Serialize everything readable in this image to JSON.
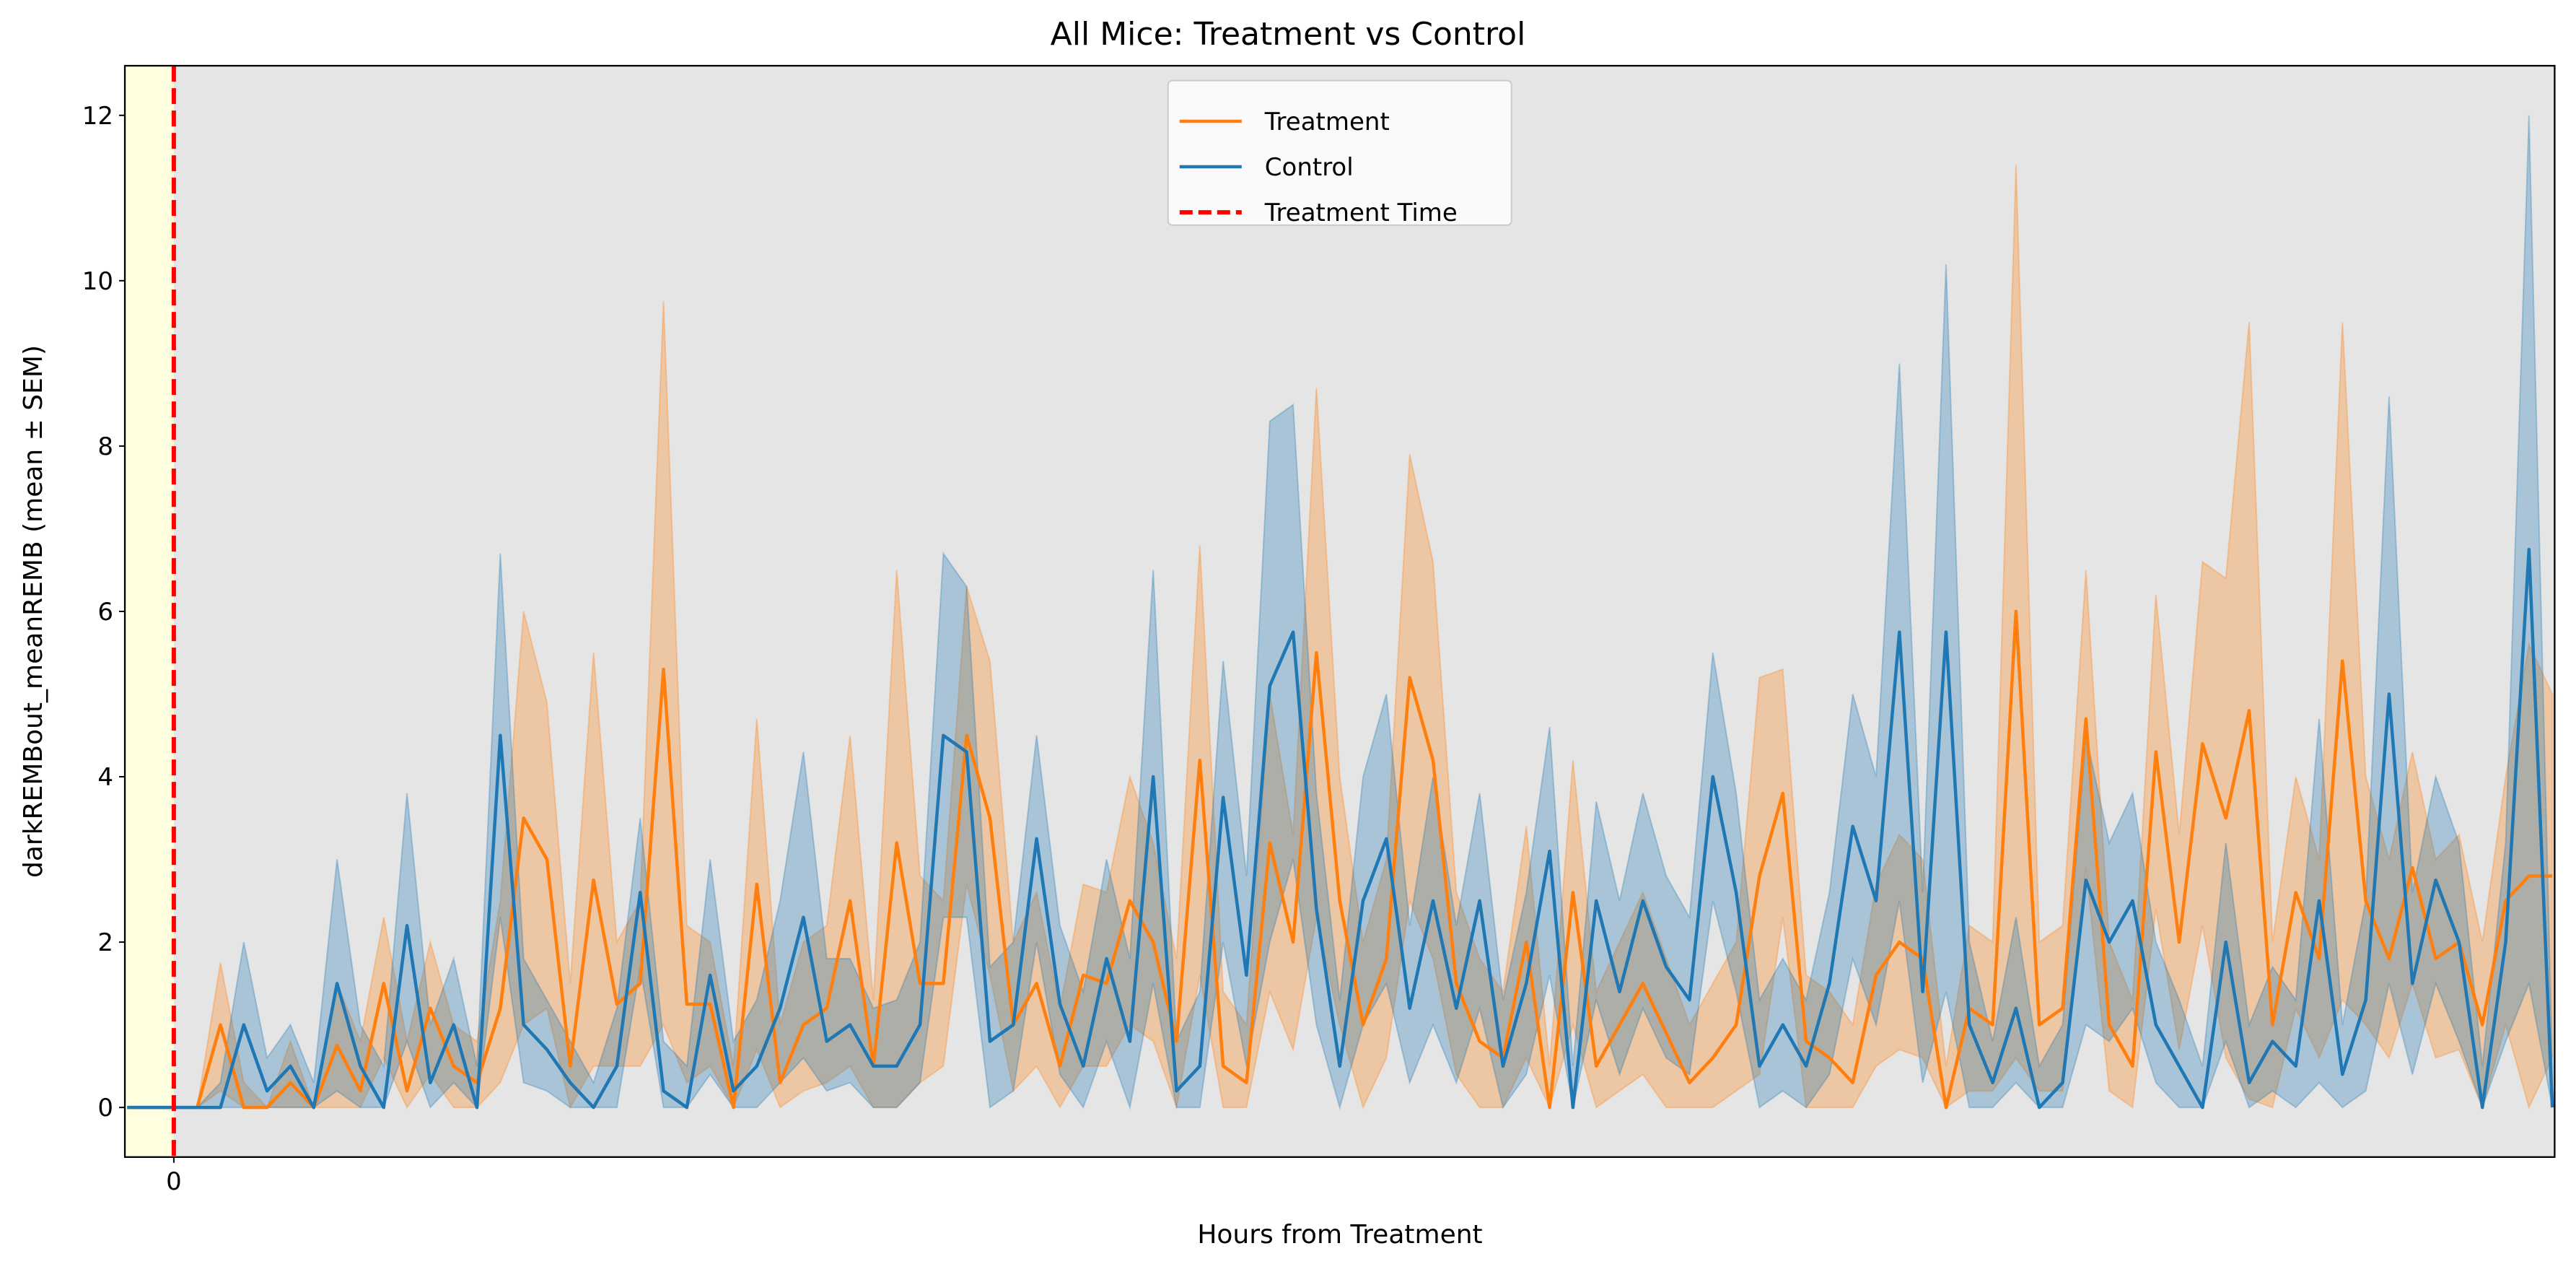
{
  "chart_data": {
    "type": "line",
    "title": "All Mice: Treatment vs Control",
    "xlabel": "Hours from Treatment",
    "ylabel": "darkREMBout_meanREMB (mean ± SEM)",
    "xlim": [
      -4.2,
      204.2
    ],
    "ylim": [
      -0.6,
      12.6
    ],
    "xticks": [
      0
    ],
    "yticks": [
      0,
      2,
      4,
      6,
      8,
      10,
      12
    ],
    "grid": false,
    "legend": "upper center",
    "background": "#e5e5e5",
    "shade": {
      "range": [
        -4.2,
        0
      ],
      "color": "#ffffe0"
    },
    "vline": {
      "name": "Treatment Time",
      "x": 0,
      "color": "#ff0000"
    },
    "x": [
      -4,
      -2,
      0,
      2,
      4,
      6,
      8,
      10,
      12,
      14,
      16,
      18,
      20,
      22,
      24,
      26,
      28,
      30,
      32,
      34,
      36,
      38,
      40,
      42,
      44,
      46,
      48,
      50,
      52,
      54,
      56,
      58,
      60,
      62,
      64,
      66,
      68,
      70,
      72,
      74,
      76,
      78,
      80,
      82,
      84,
      86,
      88,
      90,
      92,
      94,
      96,
      98,
      100,
      102,
      104,
      106,
      108,
      110,
      112,
      114,
      116,
      118,
      120,
      122,
      124,
      126,
      128,
      130,
      132,
      134,
      136,
      138,
      140,
      142,
      144,
      146,
      148,
      150,
      152,
      154,
      156,
      158,
      160,
      162,
      164,
      166,
      168,
      170,
      172,
      174,
      176,
      178,
      180,
      182,
      184,
      186,
      188,
      190,
      192,
      194,
      196,
      198,
      200,
      202,
      204
    ],
    "series": [
      {
        "name": "Treatment",
        "color": "#ff7f0e",
        "values": [
          0,
          0,
          0,
          0,
          1.0,
          0,
          0,
          0.3,
          0,
          0.75,
          0.2,
          1.5,
          0.2,
          1.2,
          0.5,
          0.3,
          1.2,
          3.5,
          3.0,
          0.5,
          2.75,
          1.25,
          1.5,
          5.3,
          1.25,
          1.25,
          0,
          2.7,
          0.3,
          1.0,
          1.2,
          2.5,
          0.5,
          3.2,
          1.5,
          1.5,
          4.5,
          3.5,
          1.0,
          1.5,
          0.5,
          1.6,
          1.5,
          2.5,
          2.0,
          0.8,
          4.2,
          0.5,
          0.3,
          3.2,
          2.0,
          5.5,
          2.5,
          1.0,
          1.8,
          5.2,
          4.2,
          1.5,
          0.8,
          0.6,
          2.0,
          0,
          2.6,
          0.5,
          1.0,
          1.5,
          0.9,
          0.3,
          0.6,
          1.0,
          2.8,
          3.8,
          0.8,
          0.6,
          0.3,
          1.6,
          2.0,
          1.8,
          0,
          1.2,
          1.0,
          6.0,
          1.0,
          1.2,
          4.7,
          1.0,
          0.5,
          4.3,
          2.0,
          4.4,
          3.5,
          4.8,
          1.0,
          2.6,
          1.8,
          5.4,
          2.5,
          1.8,
          2.9,
          1.8,
          2.0,
          1.0,
          2.5,
          2.8,
          2.8
        ],
        "lower": [
          0,
          0,
          0,
          0,
          0.2,
          0,
          0,
          0,
          0,
          0,
          0,
          0.6,
          0,
          0.4,
          0,
          0,
          0.3,
          1.0,
          1.2,
          0,
          0.5,
          0.5,
          0.5,
          1.0,
          0.3,
          0.5,
          0,
          0.7,
          0,
          0.2,
          0.3,
          0.5,
          0,
          0,
          0.3,
          0.5,
          2.7,
          1.6,
          0.2,
          0.5,
          0,
          0.5,
          0.5,
          1.0,
          0.8,
          0,
          1.6,
          0,
          0,
          1.4,
          0.7,
          2.3,
          1.0,
          0,
          0.6,
          2.5,
          1.8,
          0.4,
          0,
          0,
          0.6,
          0,
          1.0,
          0,
          0.2,
          0.4,
          0,
          0,
          0,
          0.2,
          0.4,
          2.3,
          0,
          0,
          0,
          0.5,
          0.7,
          0.6,
          0,
          0.2,
          0.2,
          0.6,
          0.2,
          0.2,
          2.9,
          0.2,
          0,
          2.4,
          0.7,
          2.2,
          0.6,
          0.1,
          0,
          1.2,
          0.6,
          1.3,
          1.0,
          0.6,
          1.5,
          0.6,
          0.7,
          0,
          1.0,
          0,
          0.6
        ],
        "upper": [
          0,
          0,
          0,
          0,
          1.75,
          0.3,
          0,
          0.8,
          0,
          1.5,
          0.8,
          2.3,
          0.8,
          2.0,
          1.0,
          0.8,
          2.5,
          6.0,
          4.9,
          1.5,
          5.5,
          2.0,
          2.5,
          9.75,
          2.2,
          2.0,
          0.5,
          4.7,
          1.0,
          2.0,
          2.2,
          4.5,
          1.3,
          6.5,
          2.8,
          2.5,
          6.3,
          5.4,
          2.0,
          2.6,
          1.2,
          2.7,
          2.6,
          4.0,
          3.2,
          1.8,
          6.8,
          1.4,
          1.0,
          5.0,
          3.3,
          8.7,
          4.0,
          2.0,
          3.0,
          7.9,
          6.6,
          2.6,
          1.8,
          1.4,
          3.4,
          0.5,
          4.2,
          1.4,
          2.0,
          2.6,
          1.8,
          1.0,
          1.5,
          2.0,
          5.2,
          5.3,
          1.6,
          1.4,
          1.0,
          2.7,
          3.3,
          3.0,
          0.5,
          2.2,
          2.0,
          11.4,
          2.0,
          2.2,
          6.5,
          2.0,
          1.3,
          6.2,
          3.3,
          6.6,
          6.4,
          9.5,
          2.0,
          4.0,
          3.0,
          9.5,
          4.0,
          3.0,
          4.3,
          3.0,
          3.3,
          2.0,
          4.0,
          5.6,
          5.0
        ]
      },
      {
        "name": "Control",
        "color": "#1f77b4",
        "values": [
          0,
          0,
          0,
          0,
          0,
          1.0,
          0.2,
          0.5,
          0,
          1.5,
          0.5,
          0,
          2.2,
          0.3,
          1.0,
          0,
          4.5,
          1.0,
          0.7,
          0.3,
          0,
          0.5,
          2.6,
          0.2,
          0,
          1.6,
          0.2,
          0.5,
          1.2,
          2.3,
          0.8,
          1.0,
          0.5,
          0.5,
          1.0,
          4.5,
          4.3,
          0.8,
          1.0,
          3.25,
          1.25,
          0.5,
          1.8,
          0.8,
          4.0,
          0.2,
          0.5,
          3.75,
          1.6,
          5.1,
          5.75,
          2.4,
          0.5,
          2.5,
          3.25,
          1.2,
          2.5,
          1.2,
          2.5,
          0.5,
          1.5,
          3.1,
          0,
          2.5,
          1.4,
          2.5,
          1.7,
          1.3,
          4.0,
          2.6,
          0.5,
          1.0,
          0.5,
          1.5,
          3.4,
          2.5,
          5.75,
          1.4,
          5.75,
          1.0,
          0.3,
          1.2,
          0,
          0.3,
          2.75,
          2.0,
          2.5,
          1.0,
          0.5,
          0,
          2.0,
          0.3,
          0.8,
          0.5,
          2.5,
          0.4,
          1.3,
          5.0,
          1.5,
          2.75,
          2.0,
          0,
          2.0,
          6.75,
          0
        ],
        "lower": [
          0,
          0,
          0,
          0,
          0,
          0,
          0,
          0,
          0,
          0.2,
          0,
          0,
          0.8,
          0,
          0.3,
          0,
          2.3,
          0.3,
          0.2,
          0,
          0,
          0,
          1.7,
          0,
          0,
          0.4,
          0,
          0,
          0.3,
          0.6,
          0.2,
          0.3,
          0,
          0,
          0.3,
          2.3,
          2.3,
          0,
          0.2,
          2.0,
          0.4,
          0,
          0.8,
          0,
          1.5,
          0,
          0,
          2.0,
          0.5,
          2.0,
          3.0,
          1.0,
          0,
          1.0,
          1.5,
          0.3,
          1.0,
          0.3,
          1.2,
          0,
          0.4,
          1.6,
          0,
          1.3,
          0.4,
          1.2,
          0.6,
          0.4,
          2.5,
          1.4,
          0,
          0.2,
          0,
          0.4,
          1.8,
          1.0,
          2.5,
          0.3,
          1.4,
          0,
          0,
          0.3,
          0,
          0,
          1.0,
          0.8,
          1.2,
          0.3,
          0,
          0,
          0.8,
          0,
          0.2,
          0,
          0.3,
          0,
          0.2,
          1.5,
          0.4,
          1.5,
          0.8,
          0,
          0.8,
          1.5,
          0
        ],
        "upper": [
          0,
          0,
          0,
          0,
          0.3,
          2.0,
          0.6,
          1.0,
          0.3,
          3.0,
          1.0,
          0.5,
          3.8,
          1.0,
          1.8,
          0.5,
          6.7,
          1.8,
          1.3,
          0.8,
          0.3,
          1.2,
          3.5,
          0.8,
          0.5,
          3.0,
          0.8,
          1.3,
          2.5,
          4.3,
          1.8,
          1.8,
          1.2,
          1.3,
          2.0,
          6.7,
          6.3,
          1.7,
          2.0,
          4.5,
          2.2,
          1.4,
          3.0,
          1.8,
          6.5,
          0.8,
          1.4,
          5.4,
          2.8,
          8.3,
          8.5,
          3.8,
          1.3,
          4.0,
          5.0,
          2.2,
          4.0,
          2.2,
          3.8,
          1.3,
          2.6,
          4.6,
          0.5,
          3.7,
          2.5,
          3.8,
          2.8,
          2.3,
          5.5,
          3.8,
          1.3,
          1.8,
          1.3,
          2.6,
          5.0,
          4.0,
          9.0,
          2.6,
          10.2,
          2.0,
          0.8,
          2.3,
          0.5,
          1.0,
          4.5,
          3.2,
          3.8,
          2.0,
          1.3,
          0.5,
          3.2,
          1.0,
          1.7,
          1.3,
          4.7,
          1.0,
          2.5,
          8.6,
          2.6,
          4.0,
          3.2,
          0.5,
          3.2,
          12.0,
          0.5
        ]
      }
    ]
  }
}
